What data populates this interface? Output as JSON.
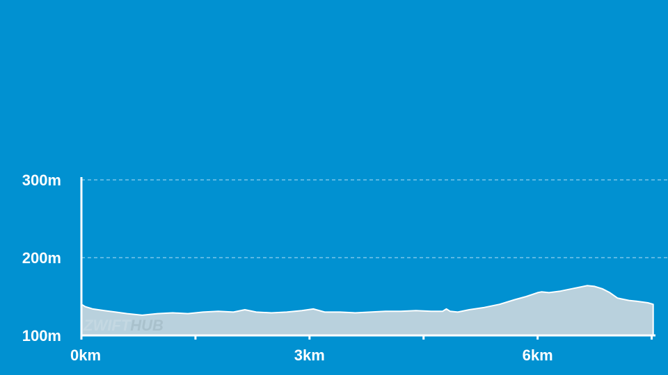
{
  "chart_data": {
    "type": "area",
    "x_unit": "km",
    "y_unit": "m",
    "xlim": [
      0,
      7.55
    ],
    "ylim": [
      100,
      300
    ],
    "x_ticks": [
      0,
      1.5,
      3,
      4.5,
      6,
      7.5
    ],
    "x_tick_labels": [
      {
        "value": 0,
        "label": "0km"
      },
      {
        "value": 3,
        "label": "3km"
      },
      {
        "value": 6,
        "label": "6km"
      }
    ],
    "y_ticks": [
      {
        "value": 300,
        "label": "300m"
      },
      {
        "value": 200,
        "label": "200m"
      },
      {
        "value": 100,
        "label": "100m"
      }
    ],
    "grid": {
      "horizontal": true,
      "style": "dashed"
    },
    "colors": {
      "background": "#0191d1",
      "area_fill": "#b9d1dd",
      "area_stroke": "#ffffff",
      "axis": "#ffffff",
      "grid": "#8fd0ee",
      "watermark": "#d2e0e8"
    },
    "watermark": {
      "part1": "ZWIFT",
      "part2": "HUB"
    },
    "series": [
      {
        "x": [
          0,
          0.05,
          0.15,
          0.3,
          0.45,
          0.6,
          0.8,
          1.0,
          1.2,
          1.4,
          1.6,
          1.8,
          2.0,
          2.15,
          2.3,
          2.5,
          2.7,
          2.9,
          3.05,
          3.2,
          3.4,
          3.6,
          3.8,
          4.0,
          4.2,
          4.4,
          4.6,
          4.75,
          4.8,
          4.85,
          4.95,
          5.1,
          5.3,
          5.5,
          5.7,
          5.85,
          6.0,
          6.05,
          6.15,
          6.3,
          6.45,
          6.55,
          6.65,
          6.75,
          6.85,
          6.95,
          7.05,
          7.1,
          7.2,
          7.3,
          7.45,
          7.52
        ],
        "y": [
          140,
          137,
          134,
          132,
          130,
          128,
          126,
          128,
          129,
          128,
          130,
          131,
          130,
          133,
          130,
          129,
          130,
          132,
          134,
          130,
          130,
          129,
          130,
          131,
          131,
          132,
          131,
          131,
          134,
          131,
          130,
          133,
          136,
          140,
          146,
          150,
          155,
          156,
          155,
          157,
          160,
          162,
          164,
          163,
          160,
          155,
          148,
          147,
          145,
          144,
          142,
          140
        ]
      }
    ]
  }
}
